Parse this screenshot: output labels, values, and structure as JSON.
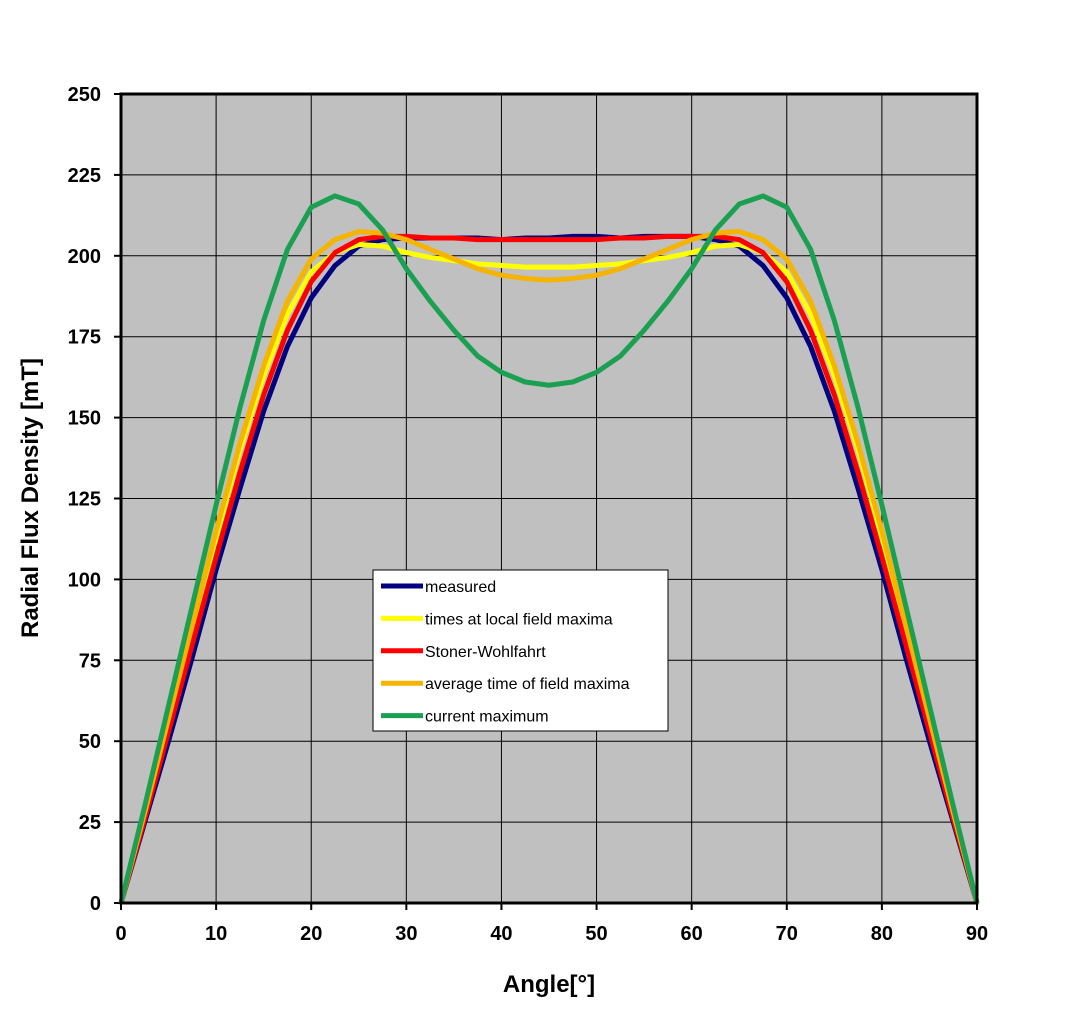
{
  "chart_data": {
    "type": "line",
    "x_label": "Angle[°]",
    "y_label": "Radial Flux Density [mT]",
    "x": [
      0,
      2.5,
      5,
      7.5,
      10,
      12.5,
      15,
      17.5,
      20,
      22.5,
      25,
      27.5,
      30,
      32.5,
      35,
      37.5,
      40,
      42.5,
      45,
      47.5,
      50,
      52.5,
      55,
      57.5,
      60,
      62.5,
      65,
      67.5,
      70,
      72.5,
      75,
      77.5,
      80,
      82.5,
      85,
      87.5,
      90
    ],
    "xlim": [
      0,
      90
    ],
    "xticks": [
      0,
      10,
      20,
      30,
      40,
      50,
      60,
      70,
      80,
      90
    ],
    "ylim": [
      0,
      250
    ],
    "yticks": [
      0,
      25,
      50,
      75,
      100,
      125,
      150,
      175,
      200,
      225,
      250
    ],
    "grid": true,
    "plot_background": "#c0c0c0",
    "series": [
      {
        "name": "measured",
        "color": "#000080",
        "values": [
          0,
          25,
          50,
          76,
          103,
          128,
          152,
          172,
          187,
          197,
          203,
          205,
          205.5,
          205.5,
          205.5,
          205.5,
          205,
          205.5,
          205.5,
          206,
          206,
          205.5,
          206,
          206,
          206,
          205,
          203,
          197,
          187,
          172,
          152,
          128,
          103,
          76,
          50,
          25,
          0
        ]
      },
      {
        "name": "times at local field maxima",
        "color": "#ffff00",
        "values": [
          0,
          28,
          57,
          85,
          113,
          140,
          163,
          182,
          195,
          201,
          203.5,
          203,
          201,
          199.5,
          198.5,
          197.5,
          197,
          196.5,
          196.5,
          196.5,
          197,
          197.5,
          198.5,
          199.5,
          201,
          203,
          203.5,
          201,
          195,
          182,
          163,
          140,
          113,
          85,
          57,
          28,
          0
        ]
      },
      {
        "name": "Stoner-Wohlfahrt",
        "color": "#ff0000",
        "values": [
          0,
          26,
          53,
          80,
          107,
          133,
          157,
          177,
          192,
          201,
          205,
          206,
          206,
          205.5,
          205.5,
          205,
          205,
          205,
          205,
          205,
          205,
          205.5,
          205.5,
          206,
          206,
          206,
          205,
          201,
          192,
          177,
          157,
          133,
          107,
          80,
          53,
          26,
          0
        ]
      },
      {
        "name": "average time of field maxima",
        "color": "#f5b400",
        "values": [
          0,
          28,
          57,
          86,
          115,
          142,
          166,
          186,
          199,
          205,
          207.5,
          207,
          205,
          202,
          199,
          196,
          194,
          193,
          192.5,
          193,
          194,
          196,
          199,
          202,
          205,
          207,
          207.5,
          205,
          199,
          186,
          166,
          142,
          115,
          86,
          57,
          28,
          0
        ]
      },
      {
        "name": "current maximum",
        "color": "#1aa050",
        "values": [
          0,
          30,
          61,
          92,
          123,
          153,
          180,
          202,
          215,
          218.5,
          216,
          208,
          196,
          186,
          177,
          169,
          164,
          161,
          160,
          161,
          164,
          169,
          177,
          186,
          196,
          208,
          216,
          218.5,
          215,
          202,
          180,
          153,
          123,
          92,
          61,
          30,
          0
        ]
      }
    ]
  }
}
